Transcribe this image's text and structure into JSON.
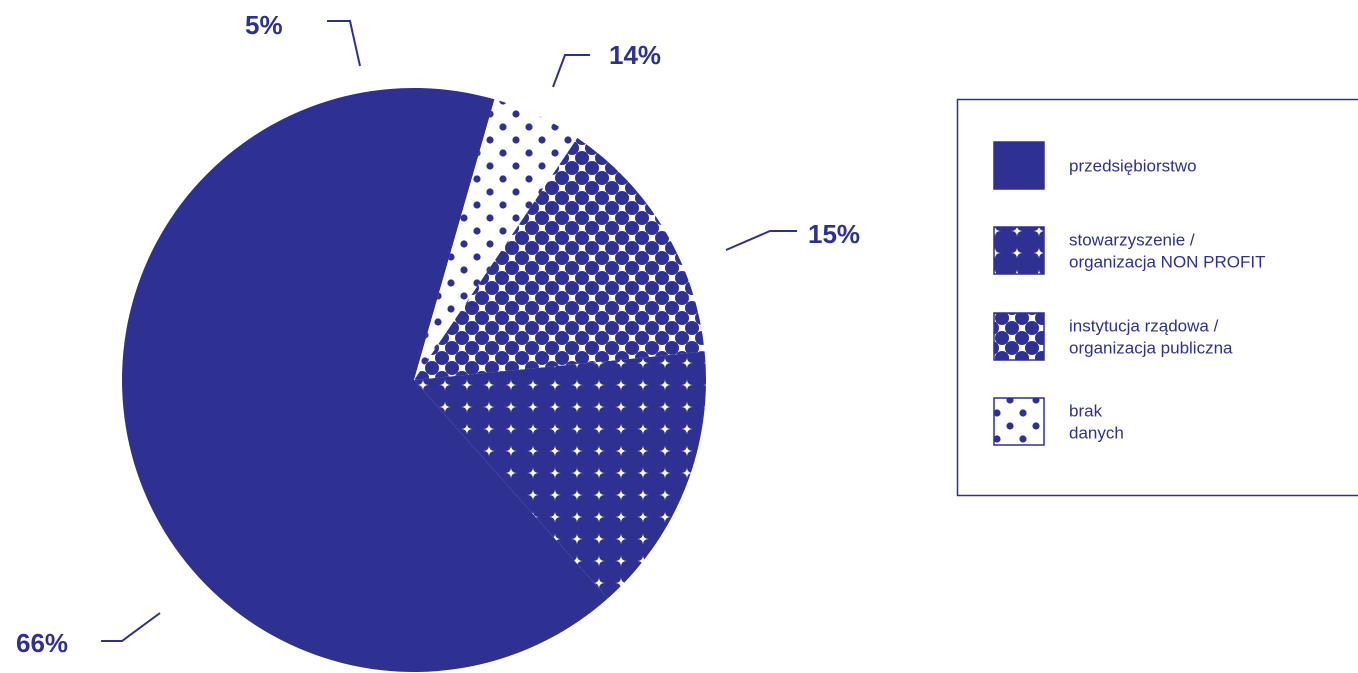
{
  "accent": "#2e3192",
  "chart_data": {
    "type": "pie",
    "title": "",
    "start_angle_deg": -16,
    "direction": "counterclockwise",
    "categories": [
      "przedsiębiorstwo",
      "stowarzyszenie / organizacja NON PROFIT",
      "instytucja rządowa / organizacja publiczna",
      "brak danych"
    ],
    "values": [
      66,
      15,
      14,
      5
    ],
    "labels": [
      "66%",
      "15%",
      "14%",
      "5%"
    ],
    "patterns": [
      "solid",
      "star-dots",
      "large-dots",
      "small-dots"
    ],
    "legend_position": "right",
    "legend": [
      {
        "lines": [
          "przedsiębiorstwo"
        ]
      },
      {
        "lines": [
          "stowarzyszenie /",
          "organizacja NON PROFIT"
        ]
      },
      {
        "lines": [
          "instytucja rządowa /",
          "organizacja publiczna"
        ]
      },
      {
        "lines": [
          "brak",
          "danych"
        ]
      }
    ]
  }
}
